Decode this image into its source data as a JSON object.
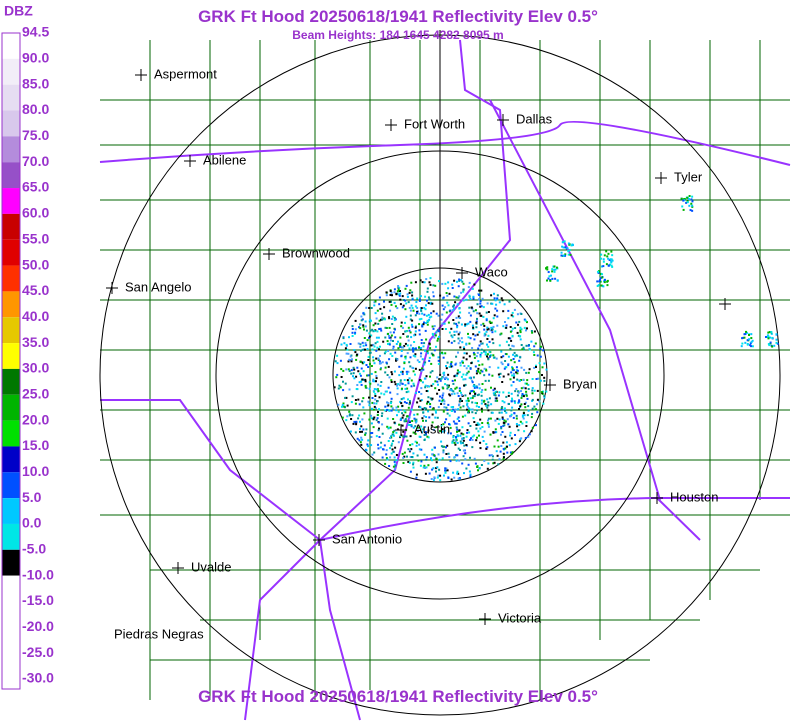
{
  "header": {
    "title": "GRK Ft Hood 20250618/1941 Reflectivity Elev 0.5°",
    "subtitle": "Beam Heights: 184 1645 4282 8095 m"
  },
  "legend": {
    "title": "DBZ",
    "labels": [
      "94.5",
      "90.0",
      "85.0",
      "80.0",
      "75.0",
      "70.0",
      "65.0",
      "60.0",
      "55.0",
      "50.0",
      "45.0",
      "40.0",
      "35.0",
      "30.0",
      "25.0",
      "20.0",
      "15.0",
      "10.0",
      "5.0",
      "0.0",
      "-5.0",
      "-10.0",
      "-15.0",
      "-20.0",
      "-25.0",
      "-30.0"
    ],
    "colors": [
      "#ffffff",
      "#f2eef8",
      "#e6ddf2",
      "#d8c8ec",
      "#b48cdc",
      "#9650c8",
      "#ff00ff",
      "#c80000",
      "#e00000",
      "#ff3000",
      "#ff9600",
      "#e6c800",
      "#ffff00",
      "#007800",
      "#00b400",
      "#00e000",
      "#0000c8",
      "#0050ff",
      "#00c8ff",
      "#00e6e6",
      "#000000",
      "#ffffff",
      "#ffffff",
      "#ffffff",
      "#ffffff"
    ]
  },
  "cities": [
    {
      "label": "Aspermont"
    },
    {
      "label": "Fort Worth"
    },
    {
      "label": "Dallas"
    },
    {
      "label": "Abilene"
    },
    {
      "label": "Tyler"
    },
    {
      "label": "Brownwood"
    },
    {
      "label": "Waco"
    },
    {
      "label": "San Angelo"
    },
    {
      "label": "Bryan"
    },
    {
      "label": "Austin"
    },
    {
      "label": "Houston"
    },
    {
      "label": "San Antonio"
    },
    {
      "label": "Uvalde"
    },
    {
      "label": "Victoria"
    },
    {
      "label": "Piedras Negras"
    }
  ]
}
